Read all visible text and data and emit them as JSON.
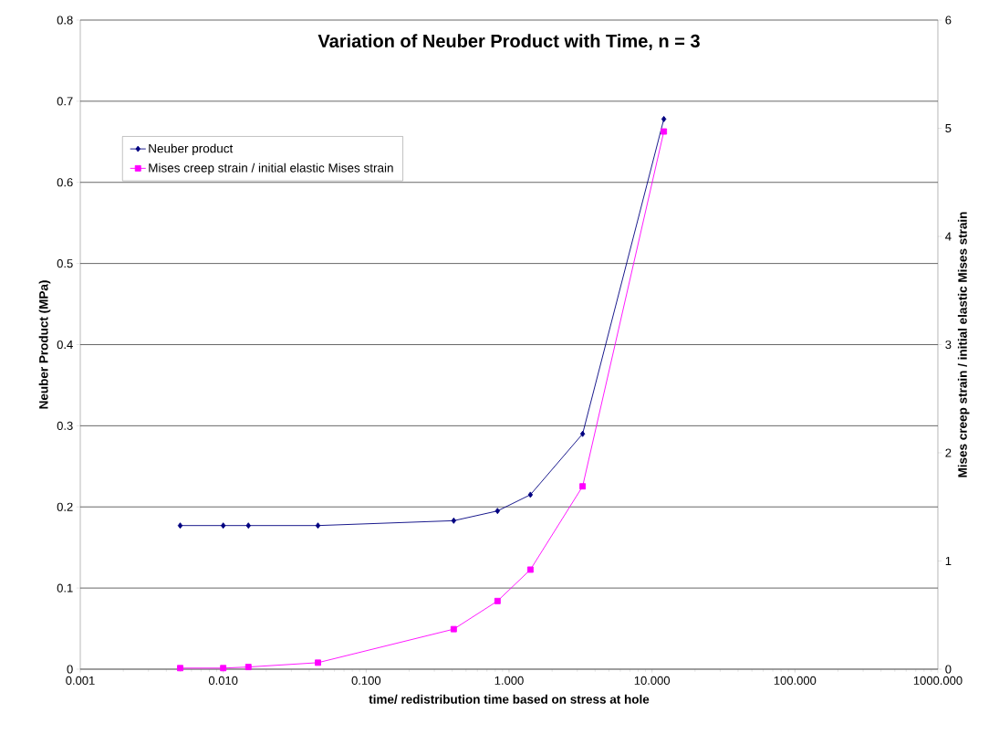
{
  "chart_data": {
    "type": "line",
    "title": "Variation of Neuber Product with Time, n = 3",
    "xlabel": "time/ redistribution time based on stress at hole",
    "ylabel": "Neuber Product (MPa)",
    "y2label": "Mises creep strain / initial elastic Mises strain",
    "log": "x",
    "grid": "y",
    "legend": "top left",
    "xlim": [
      0.001,
      1000
    ],
    "xticks": [
      0.001,
      {
        "value": 0.01,
        "label": "0.010"
      },
      {
        "value": 0.1,
        "label": "0.100"
      },
      {
        "value": 1,
        "label": "1.000"
      },
      {
        "value": 10,
        "label": "10.000"
      },
      {
        "value": 100,
        "label": "100.000"
      },
      {
        "value": 1000,
        "label": "1000.000"
      }
    ],
    "ylim": [
      0,
      0.8
    ],
    "yticks": [
      0,
      0.1,
      0.2,
      0.3,
      0.4,
      0.5,
      0.6,
      0.7,
      0.8
    ],
    "y2lim": [
      0,
      6
    ],
    "y2ticks": [
      0,
      1,
      2,
      3,
      4,
      5,
      6
    ],
    "x": [
      0.005,
      0.01,
      0.015,
      0.046,
      0.41,
      0.83,
      1.41,
      3.27,
      12.1
    ],
    "series": [
      {
        "name": "Neuber product",
        "color": "#000080",
        "marker": "diamond",
        "values": [
          0.177,
          0.177,
          0.177,
          0.177,
          0.183,
          0.195,
          0.215,
          0.29,
          0.678
        ]
      },
      {
        "name": "Mises creep strain / initial elastic Mises strain",
        "color": "#ff00ff",
        "marker": "square",
        "axis": "y2",
        "values": [
          0.01,
          0.01,
          0.02,
          0.06,
          0.37,
          0.63,
          0.92,
          1.69,
          4.97
        ]
      }
    ]
  }
}
